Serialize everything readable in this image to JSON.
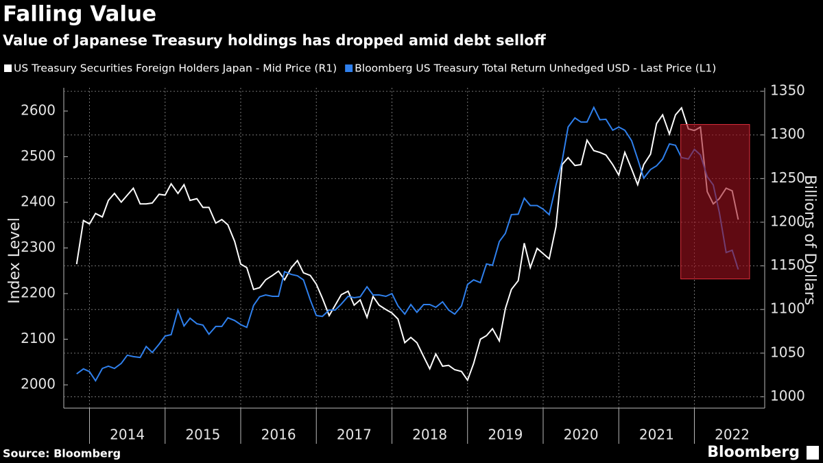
{
  "chart_data": {
    "type": "line",
    "title": "Falling Value",
    "subtitle": "Value of Japanese Treasury holdings has dropped amid debt selloff",
    "y_label": "Index Level",
    "y2_label": "Billions of Dollars",
    "source": "Source: Bloomberg",
    "brand": "Bloomberg",
    "x": [
      2013.83,
      2013.92,
      2014.0,
      2014.08,
      2014.17,
      2014.25,
      2014.33,
      2014.42,
      2014.5,
      2014.58,
      2014.67,
      2014.75,
      2014.83,
      2014.92,
      2015.0,
      2015.08,
      2015.17,
      2015.25,
      2015.33,
      2015.42,
      2015.5,
      2015.58,
      2015.67,
      2015.75,
      2015.83,
      2015.92,
      2016.0,
      2016.08,
      2016.17,
      2016.25,
      2016.33,
      2016.42,
      2016.5,
      2016.58,
      2016.67,
      2016.75,
      2016.83,
      2016.92,
      2017.0,
      2017.08,
      2017.17,
      2017.25,
      2017.33,
      2017.42,
      2017.5,
      2017.58,
      2017.67,
      2017.75,
      2017.83,
      2017.92,
      2018.0,
      2018.08,
      2018.17,
      2018.25,
      2018.33,
      2018.42,
      2018.5,
      2018.58,
      2018.67,
      2018.75,
      2018.83,
      2018.92,
      2019.0,
      2019.08,
      2019.17,
      2019.25,
      2019.33,
      2019.42,
      2019.5,
      2019.58,
      2019.67,
      2019.75,
      2019.83,
      2019.92,
      2020.0,
      2020.08,
      2020.17,
      2020.25,
      2020.33,
      2020.42,
      2020.5,
      2020.58,
      2020.67,
      2020.75,
      2020.83,
      2020.92,
      2021.0,
      2021.08,
      2021.17,
      2021.25,
      2021.33,
      2021.42,
      2021.5,
      2021.58,
      2021.67,
      2021.75,
      2021.83,
      2021.92,
      2022.0,
      2022.08,
      2022.17,
      2022.25,
      2022.33,
      2022.42,
      2022.5,
      2022.58
    ],
    "series": [
      {
        "name": "US Treasury Securities Foreign Holders Japan - Mid Price (R1)",
        "color": "#ffffff",
        "axis": "y2",
        "values": [
          1152,
          1202,
          1198,
          1210,
          1206,
          1225,
          1233,
          1223,
          1231,
          1239,
          1221,
          1221,
          1222,
          1232,
          1231,
          1244,
          1233,
          1243,
          1225,
          1227,
          1217,
          1217,
          1199,
          1203,
          1197,
          1178,
          1152,
          1148,
          1123,
          1125,
          1134,
          1139,
          1144,
          1134,
          1148,
          1156,
          1142,
          1139,
          1129,
          1113,
          1093,
          1105,
          1117,
          1121,
          1105,
          1111,
          1091,
          1115,
          1105,
          1100,
          1096,
          1089,
          1062,
          1068,
          1062,
          1046,
          1032,
          1049,
          1035,
          1036,
          1031,
          1029,
          1019,
          1038,
          1066,
          1070,
          1078,
          1064,
          1101,
          1123,
          1133,
          1176,
          1148,
          1170,
          1164,
          1158,
          1195,
          1266,
          1274,
          1265,
          1266,
          1294,
          1282,
          1280,
          1277,
          1266,
          1254,
          1280,
          1261,
          1243,
          1266,
          1278,
          1313,
          1323,
          1301,
          1323,
          1331,
          1307,
          1305,
          1309,
          1235,
          1221,
          1227,
          1239,
          1236,
          1203
        ]
      },
      {
        "name": "Bloomberg US Treasury Total Return Unhedged USD - Last Price (L1)",
        "color": "#2f80ed",
        "values": [
          2024,
          2035,
          2029,
          2009,
          2036,
          2041,
          2036,
          2047,
          2065,
          2062,
          2060,
          2084,
          2071,
          2089,
          2107,
          2110,
          2164,
          2129,
          2146,
          2134,
          2131,
          2111,
          2128,
          2128,
          2147,
          2141,
          2132,
          2126,
          2174,
          2193,
          2197,
          2194,
          2194,
          2248,
          2242,
          2239,
          2230,
          2186,
          2152,
          2150,
          2164,
          2164,
          2177,
          2194,
          2191,
          2193,
          2215,
          2197,
          2197,
          2194,
          2200,
          2173,
          2155,
          2176,
          2159,
          2176,
          2176,
          2170,
          2182,
          2164,
          2155,
          2173,
          2220,
          2230,
          2224,
          2265,
          2262,
          2314,
          2332,
          2373,
          2374,
          2409,
          2393,
          2393,
          2385,
          2373,
          2438,
          2490,
          2565,
          2585,
          2576,
          2576,
          2608,
          2581,
          2582,
          2558,
          2565,
          2558,
          2535,
          2495,
          2453,
          2472,
          2480,
          2495,
          2528,
          2525,
          2498,
          2495,
          2516,
          2504,
          2456,
          2438,
          2378,
          2290,
          2295,
          2253
        ]
      }
    ],
    "xlim": [
      2013.66,
      2022.93
    ],
    "xticks": [
      2014,
      2015,
      2016,
      2017,
      2018,
      2019,
      2020,
      2021,
      2022
    ],
    "ylim": [
      1949,
      2651
    ],
    "yticks": [
      2000,
      2100,
      2200,
      2300,
      2400,
      2500,
      2600
    ],
    "y2lim": [
      987,
      1354
    ],
    "y2ticks": [
      1000,
      1050,
      1100,
      1150,
      1200,
      1250,
      1300,
      1350
    ],
    "grid": true,
    "highlight": {
      "x": [
        2021.82,
        2022.73
      ],
      "y2": [
        1135,
        1312
      ],
      "color": "#a0101e"
    }
  }
}
